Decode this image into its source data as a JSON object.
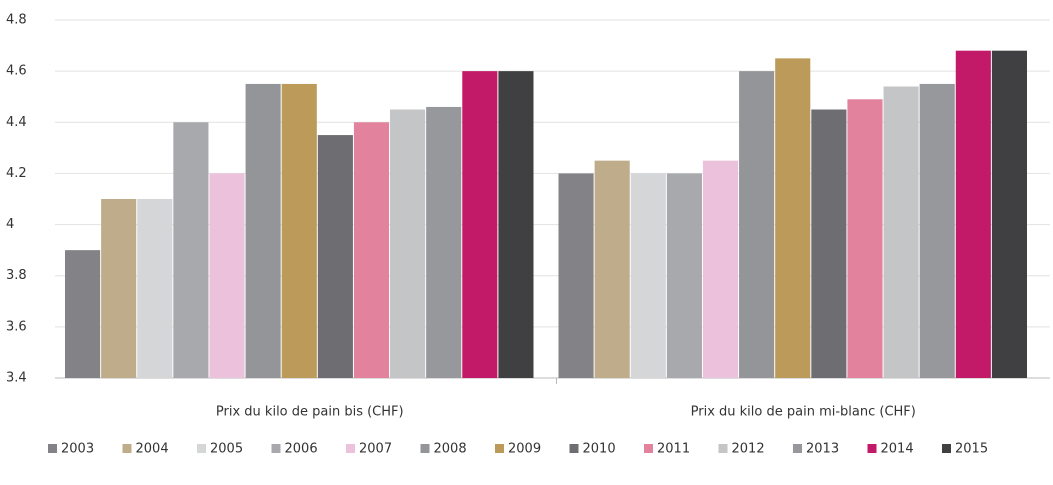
{
  "chart_data": {
    "type": "bar",
    "categories": [
      "Prix du kilo de pain bis (CHF)",
      "Prix du kilo de pain mi-blanc (CHF)"
    ],
    "series": [
      {
        "name": "2003",
        "color": "#838387",
        "values": [
          3.9,
          4.2
        ]
      },
      {
        "name": "2004",
        "color": "#bfac8a",
        "values": [
          4.1,
          4.25
        ]
      },
      {
        "name": "2005",
        "color": "#d5d6d8",
        "values": [
          4.1,
          4.2
        ]
      },
      {
        "name": "2006",
        "color": "#a8a9ad",
        "values": [
          4.4,
          4.2
        ]
      },
      {
        "name": "2007",
        "color": "#ebc1dc",
        "values": [
          4.2,
          4.25
        ]
      },
      {
        "name": "2008",
        "color": "#949599",
        "values": [
          4.55,
          4.6
        ]
      },
      {
        "name": "2009",
        "color": "#bc9a5a",
        "values": [
          4.55,
          4.65
        ]
      },
      {
        "name": "2010",
        "color": "#6e6e72",
        "values": [
          4.35,
          4.45
        ]
      },
      {
        "name": "2011",
        "color": "#e2829d",
        "values": [
          4.4,
          4.49
        ]
      },
      {
        "name": "2012",
        "color": "#c4c5c7",
        "values": [
          4.45,
          4.54
        ]
      },
      {
        "name": "2013",
        "color": "#97989c",
        "values": [
          4.46,
          4.55
        ]
      },
      {
        "name": "2014",
        "color": "#c21a68",
        "values": [
          4.6,
          4.68
        ]
      },
      {
        "name": "2015",
        "color": "#404042",
        "values": [
          4.6,
          4.68
        ]
      }
    ],
    "ylim": [
      3.4,
      4.8
    ],
    "yticks": [
      3.4,
      3.6,
      3.8,
      4,
      4.2,
      4.4,
      4.6,
      4.8
    ],
    "grid": true
  }
}
